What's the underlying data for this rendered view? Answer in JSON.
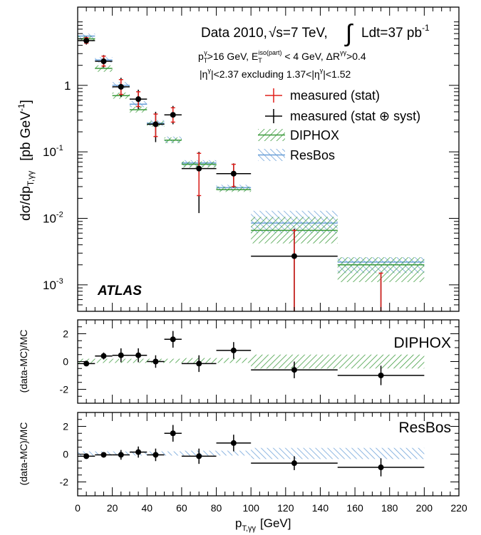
{
  "chart_data": [
    {
      "type": "scatter",
      "ylabel_main": "dσ/dp",
      "ylabel_sub": "T,γγ",
      "ylabel_unit": "[pb GeV",
      "ylabel_unit_sup": "-1",
      "ylabel_close": "]",
      "yscale": "log",
      "ylim": [
        0.0004,
        15
      ],
      "xlim": [
        0,
        220
      ],
      "annotations": {
        "data_label": "Data 2010,",
        "sqrt_s": "√s=7 TeV,",
        "lumi_integral": "∫",
        "lumi_text": "Ldt=37 pb",
        "lumi_sup": "-1",
        "cut_pt_p": "p",
        "cut_pt_sub": "T",
        "cut_pt_sup": "γ",
        "cut_pt_val": ">16 GeV, E",
        "cut_iso_sub": "T",
        "cut_iso_sup": "iso(part)",
        "cut_iso_val": " < 4 GeV, ΔR",
        "cut_dr_sup": "γγ",
        "cut_dr_val": ">0.4",
        "eta_line": "|η",
        "eta_sup1": "γ",
        "eta_mid": "|<2.37 excluding 1.37<|η",
        "eta_sup2": "γ",
        "eta_end": "|<1.52",
        "atlas": "ATLAS"
      },
      "yticks": [
        {
          "v": 1,
          "base": "1",
          "exp": ""
        },
        {
          "v": 0.1,
          "base": "10",
          "exp": "-1"
        },
        {
          "v": 0.01,
          "base": "10",
          "exp": "-2"
        },
        {
          "v": 0.001,
          "base": "10",
          "exp": "-3"
        }
      ],
      "legend": [
        {
          "label": "measured (stat)",
          "style": "red-cross"
        },
        {
          "label": "measured (stat ⊕ syst)",
          "style": "black-cross"
        },
        {
          "label": "DIPHOX",
          "style": "green-hatch"
        },
        {
          "label": "ResBos",
          "style": "blue-hatch"
        }
      ],
      "series": [
        {
          "name": "measured",
          "points": [
            {
              "x": 5,
              "xlo": 0,
              "xhi": 10,
              "y": 4.7,
              "stat": [
                4.3,
                5.2
              ],
              "tot": [
                4.1,
                5.4
              ]
            },
            {
              "x": 15,
              "xlo": 10,
              "xhi": 20,
              "y": 2.3,
              "stat": [
                1.95,
                2.75
              ],
              "tot": [
                1.85,
                2.85
              ]
            },
            {
              "x": 25,
              "xlo": 20,
              "xhi": 30,
              "y": 0.95,
              "stat": [
                0.73,
                1.22
              ],
              "tot": [
                0.67,
                1.3
              ]
            },
            {
              "x": 35,
              "xlo": 30,
              "xhi": 40,
              "y": 0.62,
              "stat": [
                0.48,
                0.8
              ],
              "tot": [
                0.44,
                0.86
              ]
            },
            {
              "x": 45,
              "xlo": 40,
              "xhi": 50,
              "y": 0.26,
              "stat": [
                0.17,
                0.37
              ],
              "tot": [
                0.14,
                0.4
              ]
            },
            {
              "x": 55,
              "xlo": 50,
              "xhi": 60,
              "y": 0.36,
              "stat": [
                0.28,
                0.46
              ],
              "tot": [
                0.26,
                0.49
              ]
            },
            {
              "x": 70,
              "xlo": 60,
              "xhi": 80,
              "y": 0.056,
              "stat": [
                0.022,
                0.095
              ],
              "tot": [
                0.012,
                0.1
              ]
            },
            {
              "x": 90,
              "xlo": 80,
              "xhi": 100,
              "y": 0.047,
              "stat": [
                0.03,
                0.065
              ],
              "tot": [
                0.029,
                0.067
              ]
            },
            {
              "x": 125,
              "xlo": 100,
              "xhi": 150,
              "y": 0.0027,
              "stat": [
                0.0004,
                0.0066
              ],
              "tot": [
                0.0004,
                0.007
              ]
            },
            {
              "x": 175,
              "xlo": 150,
              "xhi": 200,
              "y": null,
              "stat": [
                0.0004,
                0.0015
              ],
              "tot": [
                0.0004,
                0.0015
              ]
            }
          ]
        },
        {
          "name": "DIPHOX",
          "bins": [
            {
              "lo": 0,
              "hi": 10,
              "c": 5.0,
              "lo_band": 4.6,
              "hi_band": 5.5
            },
            {
              "lo": 10,
              "hi": 20,
              "c": 1.8,
              "lo_band": 1.6,
              "hi_band": 2.0
            },
            {
              "lo": 20,
              "hi": 30,
              "c": 0.7,
              "lo_band": 0.63,
              "hi_band": 0.78
            },
            {
              "lo": 30,
              "hi": 40,
              "c": 0.43,
              "lo_band": 0.39,
              "hi_band": 0.48
            },
            {
              "lo": 40,
              "hi": 50,
              "c": 0.26,
              "lo_band": 0.24,
              "hi_band": 0.29
            },
            {
              "lo": 50,
              "hi": 60,
              "c": 0.15,
              "lo_band": 0.135,
              "hi_band": 0.165
            },
            {
              "lo": 60,
              "hi": 80,
              "c": 0.065,
              "lo_band": 0.058,
              "hi_band": 0.072
            },
            {
              "lo": 80,
              "hi": 100,
              "c": 0.027,
              "lo_band": 0.025,
              "hi_band": 0.03
            },
            {
              "lo": 100,
              "hi": 150,
              "c": 0.0066,
              "lo_band": 0.0042,
              "hi_band": 0.0105
            },
            {
              "lo": 150,
              "hi": 200,
              "c": 0.002,
              "lo_band": 0.0011,
              "hi_band": 0.0026
            }
          ]
        },
        {
          "name": "ResBos",
          "bins": [
            {
              "lo": 0,
              "hi": 10,
              "c": 5.5,
              "lo_band": 5.1,
              "hi_band": 6.0
            },
            {
              "lo": 10,
              "hi": 20,
              "c": 2.4,
              "lo_band": 2.2,
              "hi_band": 2.65
            },
            {
              "lo": 20,
              "hi": 30,
              "c": 1.0,
              "lo_band": 0.9,
              "hi_band": 1.12
            },
            {
              "lo": 30,
              "hi": 40,
              "c": 0.52,
              "lo_band": 0.47,
              "hi_band": 0.58
            },
            {
              "lo": 40,
              "hi": 50,
              "c": 0.27,
              "lo_band": 0.245,
              "hi_band": 0.3
            },
            {
              "lo": 50,
              "hi": 60,
              "c": 0.15,
              "lo_band": 0.135,
              "hi_band": 0.17
            },
            {
              "lo": 60,
              "hi": 80,
              "c": 0.068,
              "lo_band": 0.06,
              "hi_band": 0.075
            },
            {
              "lo": 80,
              "hi": 100,
              "c": 0.029,
              "lo_band": 0.026,
              "hi_band": 0.032
            },
            {
              "lo": 100,
              "hi": 150,
              "c": 0.0085,
              "lo_band": 0.006,
              "hi_band": 0.013
            },
            {
              "lo": 150,
              "hi": 200,
              "c": 0.0022,
              "lo_band": 0.0015,
              "hi_band": 0.0026
            }
          ]
        }
      ]
    },
    {
      "type": "scatter",
      "panel_label": "DIPHOX",
      "ylabel": "(data-MC)/MC",
      "ylim": [
        -3,
        3
      ],
      "yticks": [
        "-2",
        "0",
        "2"
      ],
      "band": [
        {
          "lo": 0,
          "hi": 20,
          "b": -0.1,
          "t": 0.2
        },
        {
          "lo": 20,
          "hi": 60,
          "b": -0.1,
          "t": 0.2
        },
        {
          "lo": 60,
          "hi": 100,
          "b": -0.1,
          "t": 0.25
        },
        {
          "lo": 100,
          "hi": 200,
          "b": -0.5,
          "t": 0.5
        }
      ],
      "points": [
        {
          "x": 5,
          "xlo": 0,
          "xhi": 10,
          "y": -0.15,
          "yerr": 0.15
        },
        {
          "x": 15,
          "xlo": 10,
          "xhi": 20,
          "y": 0.4,
          "yerr": 0.25
        },
        {
          "x": 25,
          "xlo": 20,
          "xhi": 30,
          "y": 0.45,
          "yerr": 0.5
        },
        {
          "x": 35,
          "xlo": 30,
          "xhi": 40,
          "y": 0.45,
          "yerr": 0.5
        },
        {
          "x": 45,
          "xlo": 40,
          "xhi": 50,
          "y": 0.0,
          "yerr": 0.45
        },
        {
          "x": 55,
          "xlo": 50,
          "xhi": 60,
          "y": 1.6,
          "yerr": 0.6
        },
        {
          "x": 70,
          "xlo": 60,
          "xhi": 80,
          "y": -0.15,
          "yerr": 0.6
        },
        {
          "x": 90,
          "xlo": 80,
          "xhi": 100,
          "y": 0.8,
          "yerr": 0.6
        },
        {
          "x": 125,
          "xlo": 100,
          "xhi": 150,
          "y": -0.6,
          "yerr": 0.6
        },
        {
          "x": 175,
          "xlo": 150,
          "xhi": 200,
          "y": -1.0,
          "yerr": 0.7
        }
      ]
    },
    {
      "type": "scatter",
      "panel_label": "ResBos",
      "ylabel": "(data-MC)/MC",
      "ylim": [
        -3,
        3
      ],
      "yticks": [
        "-2",
        "0",
        "2"
      ],
      "xlabel_main": "p",
      "xlabel_sub": "T,γγ",
      "xlabel_unit": "[GeV]",
      "xticks": [
        "0",
        "20",
        "40",
        "60",
        "80",
        "100",
        "120",
        "140",
        "160",
        "180",
        "200",
        "220"
      ],
      "band": [
        {
          "lo": 0,
          "hi": 20,
          "b": -0.1,
          "t": 0.2
        },
        {
          "lo": 20,
          "hi": 60,
          "b": -0.1,
          "t": 0.2
        },
        {
          "lo": 60,
          "hi": 100,
          "b": -0.1,
          "t": 0.25
        },
        {
          "lo": 100,
          "hi": 200,
          "b": -0.35,
          "t": 0.45
        }
      ],
      "points": [
        {
          "x": 5,
          "xlo": 0,
          "xhi": 10,
          "y": -0.15,
          "yerr": 0.15
        },
        {
          "x": 15,
          "xlo": 10,
          "xhi": 20,
          "y": -0.05,
          "yerr": 0.15
        },
        {
          "x": 25,
          "xlo": 20,
          "xhi": 30,
          "y": -0.05,
          "yerr": 0.35
        },
        {
          "x": 35,
          "xlo": 30,
          "xhi": 40,
          "y": 0.15,
          "yerr": 0.4
        },
        {
          "x": 45,
          "xlo": 40,
          "xhi": 50,
          "y": -0.05,
          "yerr": 0.45
        },
        {
          "x": 55,
          "xlo": 50,
          "xhi": 60,
          "y": 1.5,
          "yerr": 0.6
        },
        {
          "x": 70,
          "xlo": 60,
          "xhi": 80,
          "y": -0.15,
          "yerr": 0.55
        },
        {
          "x": 90,
          "xlo": 80,
          "xhi": 100,
          "y": 0.8,
          "yerr": 0.6
        },
        {
          "x": 125,
          "xlo": 100,
          "xhi": 150,
          "y": -0.65,
          "yerr": 0.5
        },
        {
          "x": 175,
          "xlo": 150,
          "xhi": 200,
          "y": -0.95,
          "yerr": 0.65
        }
      ]
    }
  ]
}
